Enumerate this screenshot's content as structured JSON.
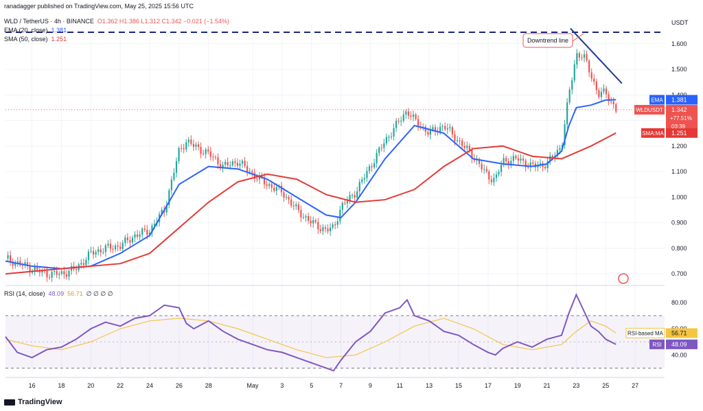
{
  "header": {
    "publisher": "ranadagger published on TradingView.com, May 25, 2025 15:56 UTC",
    "symbol_line": "WLD / TetherUS · 4h · BINANCE",
    "ohlc": "O1.362  H1.386  L1.312  C1.342  −0.021 (−1.54%)",
    "ema_label": "EMA (20, close)",
    "ema_value": "1.381",
    "sma_label": "SMA (50, close)",
    "sma_value": "1.251"
  },
  "colors": {
    "up": "#26a69a",
    "down": "#ef5350",
    "ema": "#2962ff",
    "sma": "#e53935",
    "rsi": "#7e57c2",
    "rsi_ma": "#f5c542",
    "trendline": "#1f3a93"
  },
  "watermark": "TradingView",
  "chart_data": [
    {
      "type": "candlestick",
      "quote_unit": "USDT",
      "ylim": [
        0.66,
        1.68
      ],
      "y_ticks": [
        "1.600",
        "1.500",
        "1.400",
        "1.300",
        "1.200",
        "1.100",
        "1.000",
        "0.900",
        "0.800",
        "0.700"
      ],
      "x_ticks": [
        "16",
        "18",
        "20",
        "22",
        "24",
        "26",
        "28",
        "May",
        "3",
        "5",
        "7",
        "9",
        "11",
        "13",
        "15",
        "17",
        "19",
        "21",
        "23",
        "25",
        "27"
      ],
      "x_tick_days": [
        16,
        18,
        20,
        22,
        24,
        26,
        28,
        31,
        33,
        35,
        37,
        39,
        41,
        43,
        45,
        47,
        49,
        51,
        53,
        55,
        57
      ],
      "xlim_days": [
        14.2,
        59.0
      ],
      "price_path_days": [
        14.2,
        16,
        17,
        18,
        19,
        20,
        21,
        22,
        23,
        24,
        25,
        26,
        26.5,
        27,
        28,
        29,
        30,
        31,
        32,
        33,
        34,
        35,
        36,
        36.5,
        37,
        38,
        39,
        40,
        41,
        41.5,
        42,
        43,
        44,
        45,
        46,
        47,
        47.5,
        48,
        49,
        50,
        51,
        52,
        52.5,
        53,
        53.5,
        54,
        54.5,
        55,
        55.7
      ],
      "price_path": [
        0.76,
        0.72,
        0.7,
        0.7,
        0.72,
        0.78,
        0.8,
        0.81,
        0.85,
        0.87,
        0.95,
        1.18,
        1.22,
        1.2,
        1.17,
        1.12,
        1.14,
        1.09,
        1.05,
        1.02,
        0.95,
        0.9,
        0.87,
        0.88,
        0.96,
        1.02,
        1.12,
        1.22,
        1.3,
        1.34,
        1.3,
        1.25,
        1.28,
        1.22,
        1.16,
        1.08,
        1.07,
        1.14,
        1.15,
        1.12,
        1.13,
        1.2,
        1.4,
        1.56,
        1.55,
        1.48,
        1.4,
        1.41,
        1.342
      ],
      "ema": {
        "name": "EMA",
        "value": "1.381",
        "days": [
          14.2,
          16,
          18,
          20,
          22,
          24,
          26,
          28,
          30,
          32,
          34,
          36,
          37,
          38,
          40,
          42,
          44,
          46,
          48,
          50,
          51,
          52,
          52.5,
          53,
          54,
          55,
          55.7
        ],
        "values": [
          0.75,
          0.73,
          0.72,
          0.73,
          0.78,
          0.85,
          1.05,
          1.12,
          1.11,
          1.07,
          1.0,
          0.93,
          0.92,
          0.98,
          1.15,
          1.28,
          1.25,
          1.15,
          1.13,
          1.12,
          1.13,
          1.18,
          1.28,
          1.35,
          1.36,
          1.38,
          1.381
        ]
      },
      "sma": {
        "name": "SMA:MA",
        "value": "1.251",
        "days": [
          14.2,
          18,
          22,
          24,
          26,
          28,
          30,
          32,
          34,
          36,
          38,
          40,
          42,
          44,
          46,
          48,
          50,
          52,
          54,
          55.7
        ],
        "values": [
          0.7,
          0.72,
          0.74,
          0.78,
          0.88,
          0.98,
          1.06,
          1.09,
          1.07,
          1.01,
          0.98,
          0.99,
          1.03,
          1.12,
          1.19,
          1.2,
          1.16,
          1.15,
          1.2,
          1.251
        ]
      },
      "current_label": "WLDUSDT",
      "current_price": "1.342",
      "current_change": "+77.51%",
      "countdown": "03:39",
      "resistance_level": 1.645,
      "trendline": {
        "from": [
          52.6,
          1.66
        ],
        "to": [
          56.1,
          1.445
        ]
      },
      "annotation": "Downtrend line"
    },
    {
      "type": "line",
      "name": "RSI (14, close)",
      "legend_values": [
        "48.09",
        "56.71"
      ],
      "legend_extras": [
        "∅",
        "∅",
        "∅",
        "∅"
      ],
      "ylim": [
        25,
        92
      ],
      "y_ticks": [
        "80.00",
        "60.00",
        "40.00"
      ],
      "upper_band": 70,
      "lower_band": 30,
      "mid": 50,
      "rsi_days": [
        14.2,
        15,
        16,
        17,
        18,
        19,
        20,
        21,
        22,
        23,
        24,
        25,
        26,
        26.5,
        27,
        28,
        29,
        30,
        31,
        32,
        33,
        34,
        35,
        36,
        36.5,
        37,
        38,
        39,
        40,
        41,
        41.5,
        42,
        43,
        44,
        45,
        46,
        47,
        47.5,
        48,
        49,
        50,
        51,
        52,
        52.5,
        53,
        53.5,
        54,
        54.5,
        55,
        55.7
      ],
      "rsi": [
        54,
        42,
        38,
        44,
        46,
        52,
        60,
        65,
        62,
        68,
        70,
        78,
        76,
        64,
        60,
        66,
        58,
        52,
        48,
        44,
        42,
        38,
        34,
        30,
        28,
        36,
        50,
        58,
        72,
        76,
        82,
        70,
        66,
        58,
        55,
        48,
        42,
        40,
        45,
        50,
        46,
        52,
        55,
        72,
        86,
        74,
        62,
        58,
        52,
        48.09
      ],
      "rsi_ma_days": [
        14.2,
        16,
        18,
        20,
        22,
        24,
        26,
        28,
        30,
        32,
        34,
        36,
        38,
        40,
        42,
        44,
        46,
        48,
        50,
        52,
        53,
        54,
        55,
        55.7
      ],
      "rsi_ma": [
        52,
        47,
        44,
        50,
        60,
        66,
        68,
        66,
        60,
        52,
        44,
        38,
        40,
        50,
        62,
        68,
        60,
        48,
        44,
        48,
        58,
        66,
        62,
        56.71
      ],
      "rsi_label": "48.09",
      "rsi_ma_label_text": "RSI-based MA",
      "rsi_ma_label_value": "56.71"
    }
  ]
}
